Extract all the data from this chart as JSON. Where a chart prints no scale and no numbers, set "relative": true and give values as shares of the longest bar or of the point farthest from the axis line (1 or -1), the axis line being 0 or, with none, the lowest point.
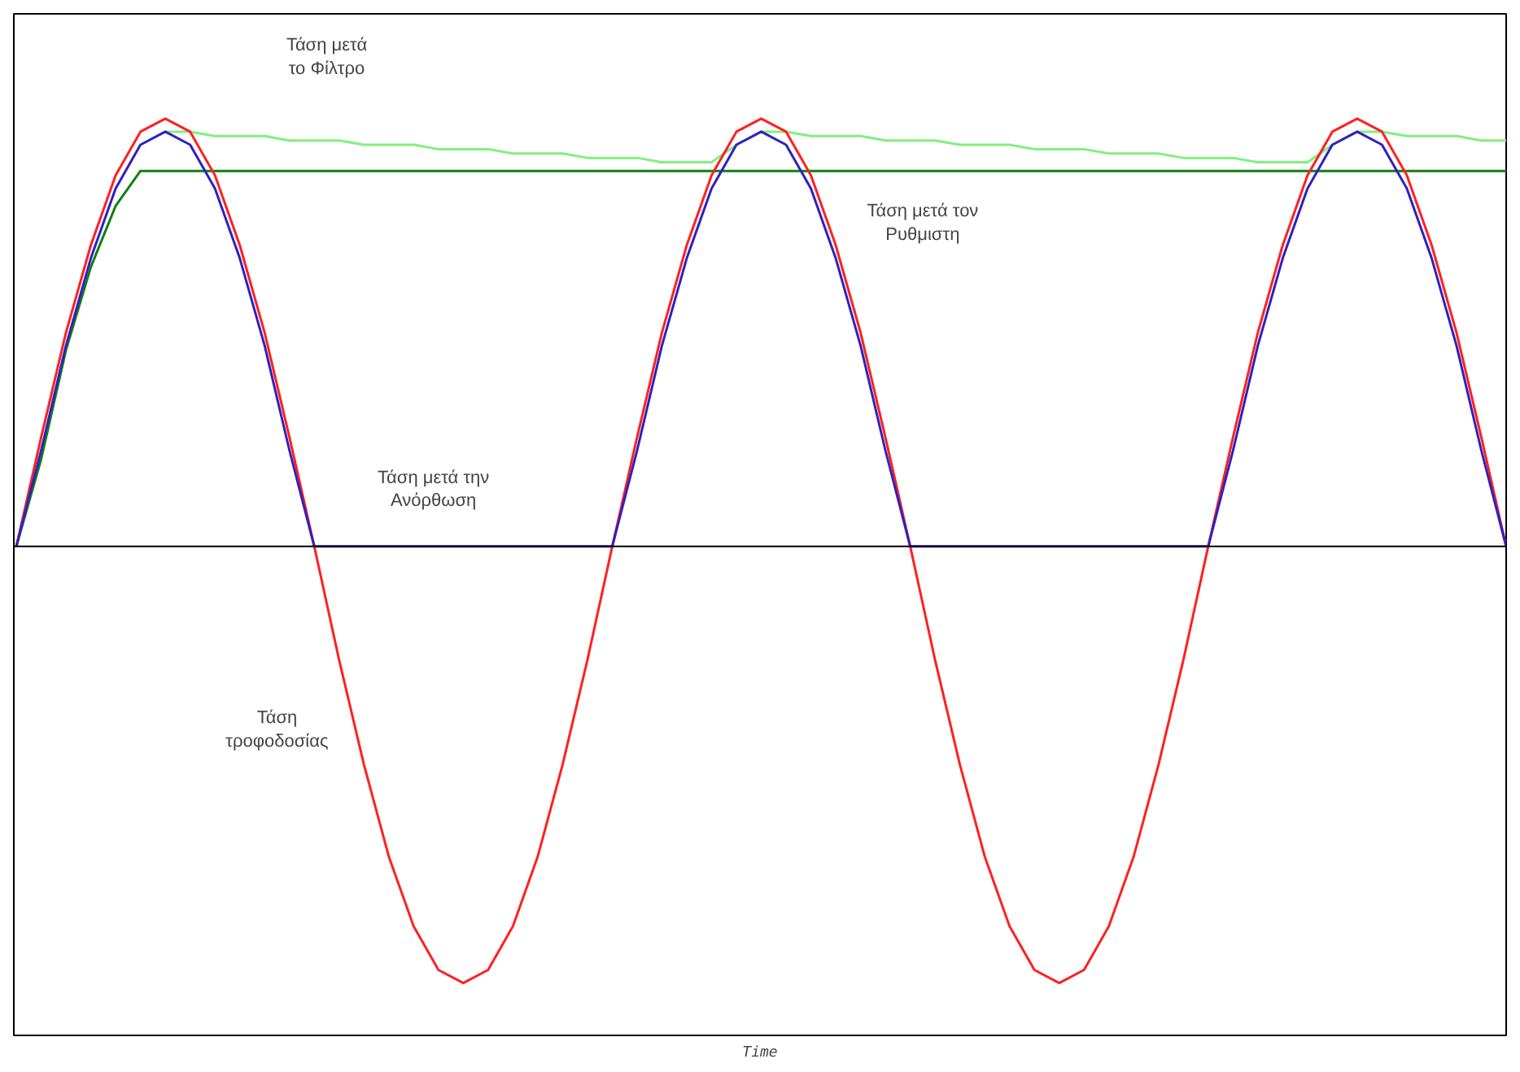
{
  "chart_data": {
    "type": "line",
    "relative": true,
    "xlabel": "Time",
    "categories": [
      null,
      null,
      null,
      null,
      null,
      null,
      null,
      null,
      null,
      null,
      null,
      null,
      null,
      null,
      null,
      null,
      null,
      null,
      null,
      null,
      null,
      null,
      null,
      null,
      null,
      null,
      null,
      null,
      null,
      null,
      null,
      null,
      null,
      null,
      null,
      null,
      null,
      null,
      null,
      null,
      null,
      null,
      null,
      null,
      null,
      null,
      null,
      null,
      null,
      null,
      null,
      null,
      null,
      null,
      null,
      null,
      null,
      null,
      null,
      null,
      null
    ],
    "series": [
      {
        "color": "#ff2020",
        "values": [
          0,
          0.25,
          0.49,
          0.69,
          0.85,
          0.95,
          0.98,
          0.95,
          0.85,
          0.69,
          0.49,
          0.25,
          0,
          -0.26,
          -0.5,
          -0.71,
          -0.87,
          -0.97,
          -1,
          -0.97,
          -0.87,
          -0.71,
          -0.5,
          -0.26,
          0,
          0.25,
          0.49,
          0.69,
          0.85,
          0.95,
          0.98,
          0.95,
          0.85,
          0.69,
          0.49,
          0.25,
          0,
          -0.26,
          -0.5,
          -0.71,
          -0.87,
          -0.97,
          -1,
          -0.97,
          -0.87,
          -0.71,
          -0.5,
          -0.26,
          0,
          0.25,
          0.49,
          0.69,
          0.85,
          0.95,
          0.98,
          0.95,
          0.85,
          0.69,
          0.49,
          0.25,
          0
        ]
      },
      {
        "color": "#3020c0",
        "values": [
          0,
          0.22,
          0.46,
          0.66,
          0.82,
          0.92,
          0.95,
          0.92,
          0.82,
          0.66,
          0.46,
          0.22,
          0,
          0,
          0,
          0,
          0,
          0,
          0,
          0,
          0,
          0,
          0,
          0,
          0,
          0.22,
          0.46,
          0.66,
          0.82,
          0.92,
          0.95,
          0.92,
          0.82,
          0.66,
          0.46,
          0.22,
          0,
          0,
          0,
          0,
          0,
          0,
          0,
          0,
          0,
          0,
          0,
          0,
          0,
          0.22,
          0.46,
          0.66,
          0.82,
          0.92,
          0.95,
          0.92,
          0.82,
          0.66,
          0.46,
          0.22,
          0
        ]
      },
      {
        "color": "#80f080",
        "values": [
          null,
          null,
          null,
          null,
          null,
          null,
          0.95,
          0.95,
          0.94,
          0.94,
          0.94,
          0.93,
          0.93,
          0.93,
          0.92,
          0.92,
          0.92,
          0.91,
          0.91,
          0.91,
          0.9,
          0.9,
          0.9,
          0.89,
          0.89,
          0.89,
          0.88,
          0.88,
          0.88,
          0.92,
          0.95,
          0.95,
          0.94,
          0.94,
          0.94,
          0.93,
          0.93,
          0.93,
          0.92,
          0.92,
          0.92,
          0.91,
          0.91,
          0.91,
          0.9,
          0.9,
          0.9,
          0.89,
          0.89,
          0.89,
          0.88,
          0.88,
          0.88,
          0.92,
          0.95,
          0.95,
          0.94,
          0.94,
          0.94,
          0.93,
          0.93
        ]
      },
      {
        "color": "#108010",
        "values": [
          0,
          0.2,
          0.45,
          0.64,
          0.78,
          0.86,
          0.86,
          0.86,
          0.86,
          0.86,
          0.86,
          0.86,
          0.86,
          0.86,
          0.86,
          0.86,
          0.86,
          0.86,
          0.86,
          0.86,
          0.86,
          0.86,
          0.86,
          0.86,
          0.86,
          0.86,
          0.86,
          0.86,
          0.86,
          0.86,
          0.86,
          0.86,
          0.86,
          0.86,
          0.86,
          0.86,
          0.86,
          0.86,
          0.86,
          0.86,
          0.86,
          0.86,
          0.86,
          0.86,
          0.86,
          0.86,
          0.86,
          0.86,
          0.86,
          0.86,
          0.86,
          0.86,
          0.86,
          0.86,
          0.86,
          0.86,
          0.86,
          0.86,
          0.86,
          0.86,
          0.86
        ]
      }
    ],
    "annotations": [
      "Τάση μετά\nτο Φίλτρο",
      "Τάση μετά τον\nΡυθμιστη",
      "Τάση μετά την\nΑνόρθωση",
      "Τάση\nτροφοδοσίας"
    ]
  }
}
